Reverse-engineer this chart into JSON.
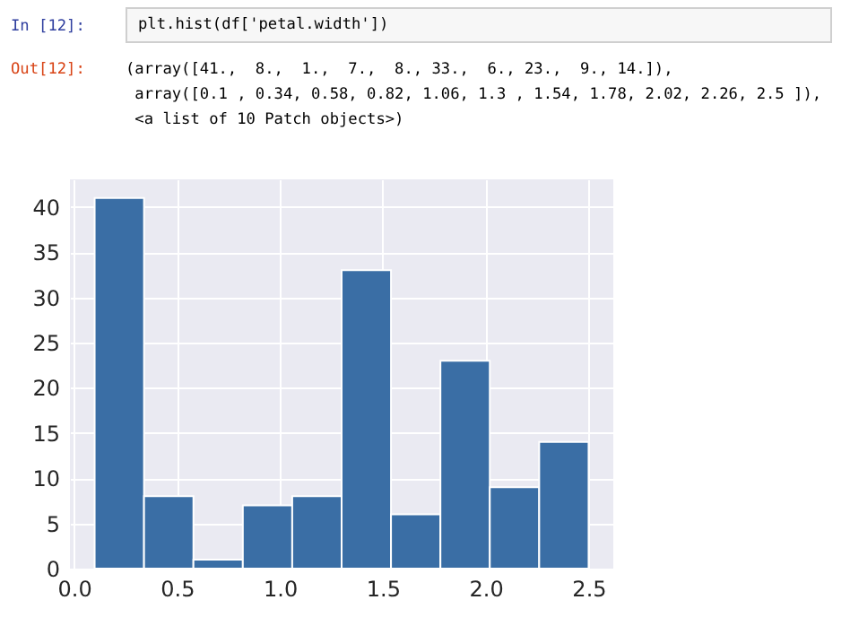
{
  "chart_data": {
    "type": "histogram",
    "bins": [
      0.1,
      0.34,
      0.58,
      0.82,
      1.06,
      1.3,
      1.54,
      1.78,
      2.02,
      2.26,
      2.5
    ],
    "values": [
      41,
      8,
      1,
      7,
      8,
      33,
      6,
      23,
      9,
      14
    ],
    "color": "#3a6ea5",
    "xlim": [
      -0.02,
      2.62
    ],
    "xticks": [
      {
        "value": 0,
        "label": "0.0"
      },
      0.5,
      {
        "value": 1,
        "label": "1.0"
      },
      1.5,
      {
        "value": 2,
        "label": "2.0"
      },
      2.5
    ],
    "ylim": [
      0,
      43.05
    ],
    "yticks": [
      0,
      5,
      10,
      15,
      20,
      25,
      30,
      35,
      40
    ],
    "grid": true,
    "annotations": [
      "In [12]:",
      "plt.hist(df['petal.width'])",
      "Out[12]:",
      "(array([41.,  8.,  1.,  7.,  8., 33.,  6., 23.,  9., 14.]),",
      " array([0.1 , 0.34, 0.58, 0.82, 1.06, 1.3 , 1.54, 1.78, 2.02, 2.26, 2.5 ]),",
      " <a list of 10 Patch objects>)"
    ]
  }
}
